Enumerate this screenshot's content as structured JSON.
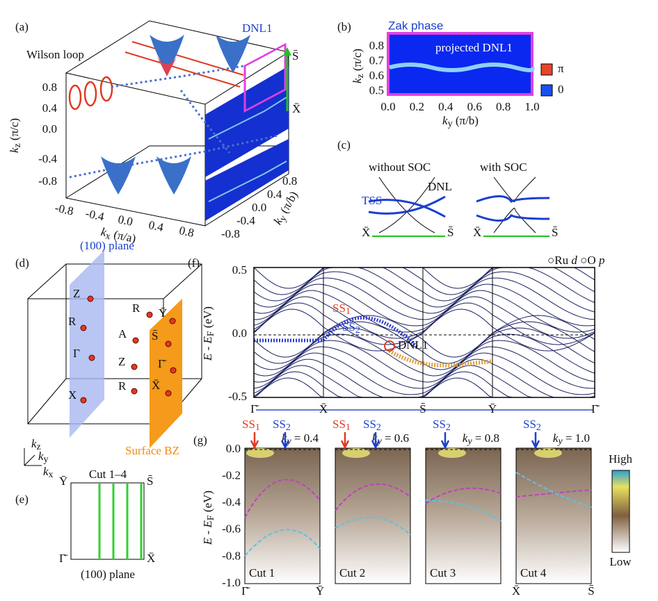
{
  "panel_a": {
    "label": "(a)",
    "wilson": "Wilson loop",
    "dnl": "DNL1",
    "s_bar": "S̄",
    "x_bar": "X̄",
    "kz_ticks": [
      "0.8",
      "0.4",
      "0.0",
      "-0.4",
      "-0.8"
    ],
    "kx_ticks": [
      "-0.8",
      "-0.4",
      "0.0",
      "0.4",
      "0.8"
    ],
    "ky_ticks": [
      "-0.8",
      "-0.4",
      "0.0",
      "0.4",
      "0.8"
    ],
    "kz_axis": [
      "k",
      "z",
      " (π/c)"
    ],
    "kx_axis": [
      "k",
      "x",
      " (π/a)"
    ],
    "ky_axis": [
      "k",
      "y",
      " (π/b)"
    ]
  },
  "panel_b": {
    "label": "(b)",
    "title": "Zak phase",
    "annotation": "projected DNL1",
    "yticks": [
      "0.8",
      "0.7",
      "0.6",
      "0.5"
    ],
    "xticks": [
      "0.0",
      "0.2",
      "0.4",
      "0.6",
      "0.8",
      "1.0"
    ],
    "y_axis": [
      "k",
      "z",
      " (π/c)"
    ],
    "x_axis": [
      "k",
      "y",
      " (π/b)"
    ],
    "legend": [
      {
        "name": "π",
        "color": "#e8442a"
      },
      {
        "name": "0",
        "color": "#1a4ff0"
      }
    ]
  },
  "panel_c": {
    "label": "(c)",
    "left_title": "without SOC",
    "right_title": "with SOC",
    "dnl": "DNL",
    "tss": "TSS",
    "ends": [
      "X̄",
      "S̄",
      "X̄",
      "S̄"
    ]
  },
  "panel_d": {
    "label": "(d)",
    "plane": "(100) plane",
    "surface": "Surface BZ",
    "points": [
      "Z",
      "R",
      "Ȳ",
      "R",
      "A",
      "S̄",
      "Γ",
      "Z",
      "Γ̄",
      "X",
      "R",
      "X̄"
    ],
    "axes": [
      [
        "k",
        "z"
      ],
      [
        "k",
        "y"
      ],
      [
        "k",
        "x"
      ]
    ]
  },
  "panel_e": {
    "label": "(e)",
    "corners": [
      "Ȳ",
      "S̄",
      "Γ̄",
      "X̄"
    ],
    "title": "Cut 1–4",
    "caption": "(100) plane"
  },
  "panel_f": {
    "label": "(f)",
    "yticks": [
      "0.5",
      "0.0",
      "-0.5"
    ],
    "y_axis": [
      "E - E",
      "F",
      " (eV)"
    ],
    "path": [
      "Γ̄",
      "X̄",
      "S̄",
      "Ȳ",
      "Γ̄"
    ],
    "legend": [
      {
        "symbol": "○",
        "name": "Ru ",
        "orbital": "d",
        "color": "#2b3bc4"
      },
      {
        "symbol": "○",
        "name": "O ",
        "orbital": "p",
        "color": "#e0a040"
      }
    ],
    "ss1": [
      "SS",
      "1"
    ],
    "ss2": [
      "SS",
      "2"
    ],
    "dnl": "DNL1"
  },
  "panel_g": {
    "label": "(g)",
    "yticks": [
      "0.0",
      "-0.2",
      "-0.4",
      "-0.6",
      "-0.8",
      "-1.0"
    ],
    "y_axis": [
      "E - E",
      "F",
      " (eV)"
    ],
    "ky_symbol": [
      "k",
      "y"
    ],
    "cuts": [
      {
        "name": "Cut 1",
        "ky": " = 0.4",
        "markers": [
          [
            "SS",
            "1"
          ],
          [
            "SS",
            "2"
          ]
        ]
      },
      {
        "name": "Cut 2",
        "ky": " = 0.6",
        "markers": [
          [
            "SS",
            "1"
          ],
          [
            "SS",
            "2"
          ]
        ]
      },
      {
        "name": "Cut 3",
        "ky": " = 0.8",
        "markers": [
          [
            "SS",
            "2"
          ]
        ]
      },
      {
        "name": "Cut 4",
        "ky": " = 1.0",
        "markers": [
          [
            "SS",
            "2"
          ]
        ]
      }
    ],
    "ends": [
      "Γ̄",
      "Ȳ",
      "X̄",
      "S̄"
    ],
    "colorbar": [
      "High",
      "Low"
    ]
  }
}
